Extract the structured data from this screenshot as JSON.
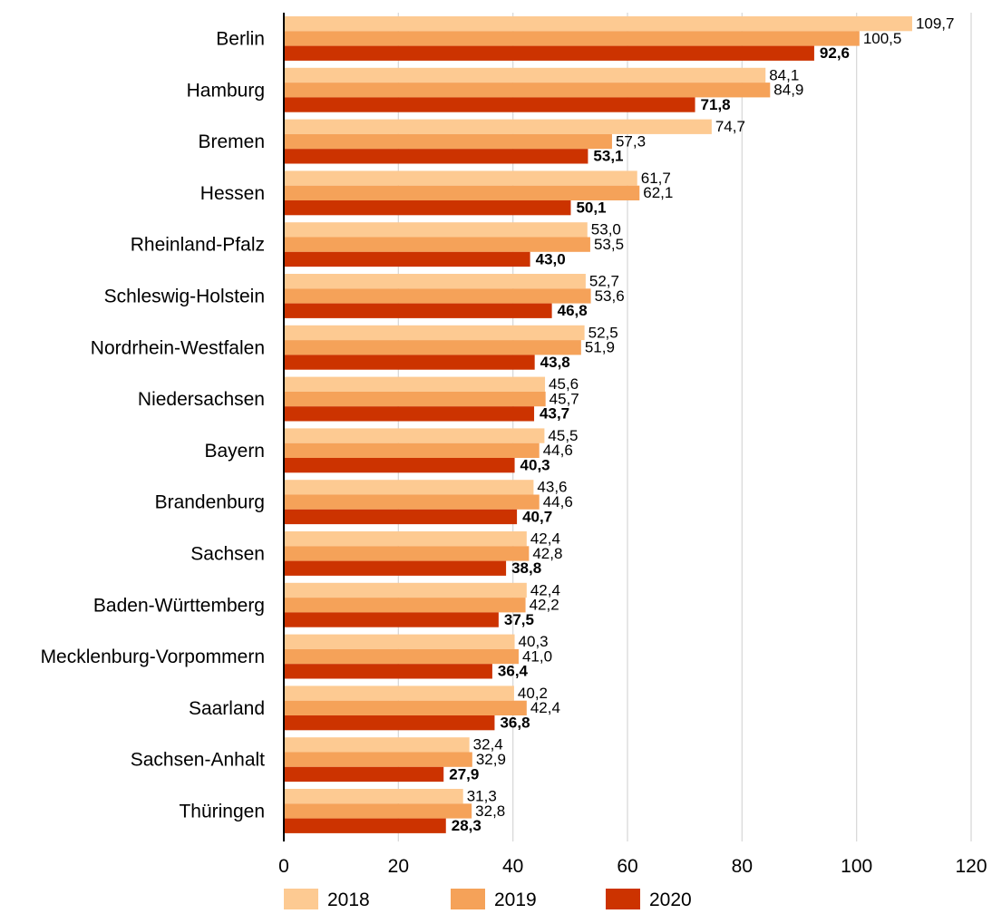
{
  "chart_data": {
    "type": "bar",
    "orientation": "horizontal",
    "categories": [
      "Berlin",
      "Hamburg",
      "Bremen",
      "Hessen",
      "Rheinland-Pfalz",
      "Schleswig-Holstein",
      "Nordrhein-Westfalen",
      "Niedersachsen",
      "Bayern",
      "Brandenburg",
      "Sachsen",
      "Baden-Württemberg",
      "Mecklenburg-Vorpommern",
      "Saarland",
      "Sachsen-Anhalt",
      "Thüringen"
    ],
    "series": [
      {
        "name": "2018",
        "color": "#fdca92",
        "values": [
          109.7,
          84.1,
          74.7,
          61.7,
          53.0,
          52.7,
          52.5,
          45.6,
          45.5,
          43.6,
          42.4,
          42.4,
          40.3,
          40.2,
          32.4,
          31.3
        ],
        "labels": [
          "109,7",
          "84,1",
          "74,7",
          "61,7",
          "53,0",
          "52,7",
          "52,5",
          "45,6",
          "45,5",
          "43,6",
          "42,4",
          "42,4",
          "40,3",
          "40,2",
          "32,4",
          "31,3"
        ]
      },
      {
        "name": "2019",
        "color": "#f5a259",
        "values": [
          100.5,
          84.9,
          57.3,
          62.1,
          53.5,
          53.6,
          51.9,
          45.7,
          44.6,
          44.6,
          42.8,
          42.2,
          41.0,
          42.4,
          32.9,
          32.8
        ],
        "labels": [
          "100,5",
          "84,9",
          "57,3",
          "62,1",
          "53,5",
          "53,6",
          "51,9",
          "45,7",
          "44,6",
          "44,6",
          "42,8",
          "42,2",
          "41,0",
          "42,4",
          "32,9",
          "32,8"
        ]
      },
      {
        "name": "2020",
        "color": "#cc3300",
        "values": [
          92.6,
          71.8,
          53.1,
          50.1,
          43.0,
          46.8,
          43.8,
          43.7,
          40.3,
          40.7,
          38.8,
          37.5,
          36.4,
          36.8,
          27.9,
          28.3
        ],
        "labels": [
          "92,6",
          "71,8",
          "53,1",
          "50,1",
          "43,0",
          "46,8",
          "43,8",
          "43,7",
          "40,3",
          "40,7",
          "38,8",
          "37,5",
          "36,4",
          "36,8",
          "27,9",
          "28,3"
        ]
      }
    ],
    "xlim": [
      0,
      120
    ],
    "xticks": [
      "0",
      "20",
      "40",
      "60",
      "80",
      "100",
      "120"
    ],
    "grid": true,
    "legend_position": "bottom",
    "title": "",
    "xlabel": "",
    "ylabel": ""
  }
}
